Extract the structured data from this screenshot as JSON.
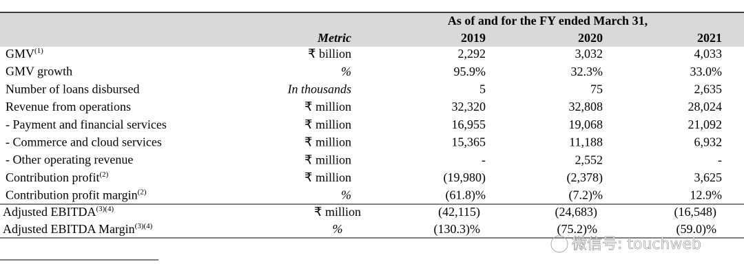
{
  "table": {
    "header": {
      "period": "As of and for the FY ended March 31,",
      "metric": "Metric",
      "years": [
        "2019",
        "2020",
        "2021"
      ]
    },
    "rows": [
      {
        "label": "GMV",
        "sup": "(1)",
        "unit": "₹ billion",
        "values": [
          "2,292",
          "3,032",
          "4,033"
        ]
      },
      {
        "label": "GMV growth",
        "unit": "%",
        "values": [
          "95.9%",
          "32.3%",
          "33.0%"
        ]
      },
      {
        "label": "Number of loans disbursed",
        "unit": "In thousands",
        "values": [
          "5",
          "75",
          "2,635"
        ]
      },
      {
        "label": "Revenue from operations",
        "unit": "₹ million",
        "values": [
          "32,320",
          "32,808",
          "28,024"
        ]
      },
      {
        "label": "- Payment and financial services",
        "unit": "₹ million",
        "values": [
          "16,955",
          "19,068",
          "21,092"
        ]
      },
      {
        "label": "- Commerce and cloud services",
        "unit": "₹ million",
        "values": [
          "15,365",
          "11,188",
          "6,932"
        ]
      },
      {
        "label": "- Other operating revenue",
        "unit": "₹ million",
        "values": [
          "-",
          "2,552",
          "-"
        ]
      },
      {
        "label": "Contribution profit",
        "sup": "(2)",
        "unit": "₹ million",
        "values": [
          "(19,980)",
          "(2,378)",
          "3,625"
        ]
      },
      {
        "label": "Contribution profit margin",
        "sup": "(2)",
        "unit": "%",
        "values": [
          "(61.8)%",
          "(7.2)%",
          "12.9%"
        ]
      },
      {
        "label": "Adjusted EBITDA",
        "sup": "(3)(4)",
        "unit": "₹ million",
        "values": [
          "(42,115)",
          "(24,683)",
          "(16,548)"
        ]
      },
      {
        "label": "Adjusted EBITDA Margin",
        "sup": "(3)(4)",
        "unit": "%",
        "values": [
          "(130.3)%",
          "(75.2)%",
          "(59.0)%"
        ]
      }
    ]
  },
  "watermark": "微信号: touchweb"
}
